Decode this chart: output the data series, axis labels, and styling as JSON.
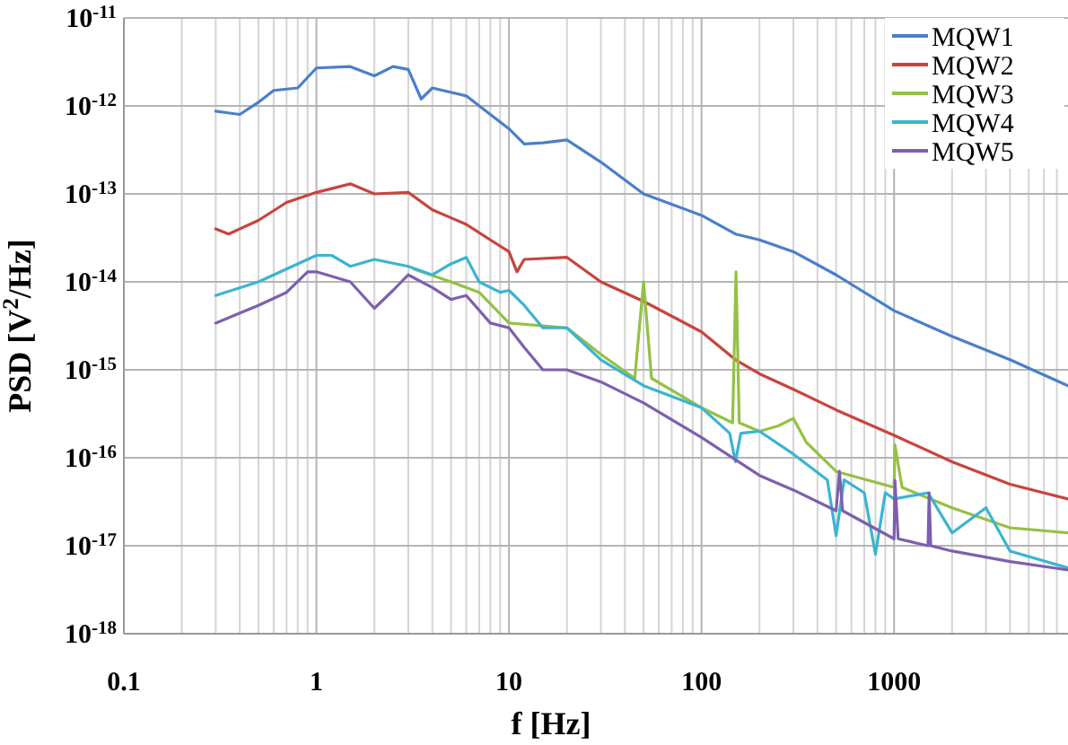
{
  "chart_data": {
    "type": "line",
    "xlabel": "f [Hz]",
    "ylabel": "PSD [V$^{2}$/Hz]",
    "log": "xy",
    "grid": true,
    "legend": "top right",
    "line_style": "solid",
    "marker": "none",
    "xlim": [
      0.1,
      8000
    ],
    "ylim": [
      1e-18,
      1e-11
    ],
    "xticks": [
      0.1,
      {
        "value": 0.2,
        "label": null
      },
      {
        "value": 0.3,
        "label": null
      },
      {
        "value": 0.4,
        "label": null
      },
      {
        "value": 0.5,
        "label": null
      },
      {
        "value": 0.6,
        "label": null
      },
      {
        "value": 0.7,
        "label": null
      },
      {
        "value": 0.8,
        "label": null
      },
      {
        "value": 0.9,
        "label": null
      },
      1,
      {
        "value": 2,
        "label": null
      },
      {
        "value": 3,
        "label": null
      },
      {
        "value": 4,
        "label": null
      },
      {
        "value": 5,
        "label": null
      },
      {
        "value": 6,
        "label": null
      },
      {
        "value": 7,
        "label": null
      },
      {
        "value": 8,
        "label": null
      },
      {
        "value": 9,
        "label": null
      },
      10,
      {
        "value": 20,
        "label": null
      },
      {
        "value": 30,
        "label": null
      },
      {
        "value": 40,
        "label": null
      },
      {
        "value": 50,
        "label": null
      },
      {
        "value": 60,
        "label": null
      },
      {
        "value": 70,
        "label": null
      },
      {
        "value": 80,
        "label": null
      },
      {
        "value": 90,
        "label": null
      },
      100,
      {
        "value": 200,
        "label": null
      },
      {
        "value": 300,
        "label": null
      },
      {
        "value": 400,
        "label": null
      },
      {
        "value": 500,
        "label": null
      },
      {
        "value": 600,
        "label": null
      },
      {
        "value": 700,
        "label": null
      },
      {
        "value": 800,
        "label": null
      },
      {
        "value": 900,
        "label": null
      },
      1000,
      {
        "value": 2000,
        "label": null
      },
      {
        "value": 3000,
        "label": null
      },
      {
        "value": 4000,
        "label": null
      },
      {
        "value": 5000,
        "label": null
      },
      {
        "value": 6000,
        "label": null
      },
      {
        "value": 7000,
        "label": null
      }
    ],
    "yticks": [
      {
        "value": 1e-18,
        "label": "10$^{-18}$"
      },
      {
        "value": 1e-17,
        "label": "10$^{-17}$"
      },
      {
        "value": 1e-16,
        "label": "10$^{-16}$"
      },
      {
        "value": 1e-15,
        "label": "10$^{-15}$"
      },
      {
        "value": 1e-14,
        "label": "10$^{-14}$"
      },
      {
        "value": 1e-13,
        "label": "10$^{-13}$"
      },
      {
        "value": 1e-12,
        "label": "10$^{-12}$"
      },
      {
        "value": 1e-11,
        "label": "10$^{-11}$"
      }
    ],
    "series": [
      {
        "name": "MQW1",
        "color": "#4a7fc9",
        "x": [
          0.3,
          0.4,
          0.5,
          0.6,
          0.8,
          1,
          1.5,
          2,
          2.5,
          3,
          3.5,
          4,
          6,
          8,
          10,
          12,
          15,
          20,
          30,
          50,
          100,
          150,
          200,
          300,
          500,
          1000,
          2000,
          4000,
          8000
        ],
        "values": [
          8.7e-13,
          8e-13,
          1.1e-12,
          1.5e-12,
          1.6e-12,
          2.7e-12,
          2.8e-12,
          2.2e-12,
          2.8e-12,
          2.6e-12,
          1.2e-12,
          1.6e-12,
          1.3e-12,
          8e-13,
          5.5e-13,
          3.7e-13,
          3.8e-13,
          4.1e-13,
          2.3e-13,
          1e-13,
          5.7e-14,
          3.5e-14,
          3e-14,
          2.2e-14,
          1.2e-14,
          4.7e-15,
          2.4e-15,
          1.3e-15,
          6.6e-16
        ]
      },
      {
        "name": "MQW2",
        "color": "#c8443e",
        "x": [
          0.3,
          0.35,
          0.5,
          0.7,
          1,
          1.5,
          2,
          3,
          4,
          6,
          8,
          10,
          11,
          12,
          20,
          30,
          50,
          100,
          150,
          200,
          300,
          500,
          1000,
          2000,
          4000,
          8000
        ],
        "values": [
          4e-14,
          3.5e-14,
          5e-14,
          8e-14,
          1.04e-13,
          1.3e-13,
          1e-13,
          1.04e-13,
          6.6e-14,
          4.5e-14,
          3e-14,
          2.2e-14,
          1.3e-14,
          1.8e-14,
          1.9e-14,
          1e-14,
          6e-15,
          2.7e-15,
          1.3e-15,
          9e-16,
          6e-16,
          3.5e-16,
          1.8e-16,
          9e-17,
          5e-17,
          3.4e-17
        ]
      },
      {
        "name": "MQW3",
        "color": "#94c143",
        "x": [
          3.2,
          5,
          7,
          10,
          20,
          30,
          45,
          50,
          55,
          100,
          145,
          151,
          157,
          200,
          250,
          300,
          350,
          500,
          1000,
          1010,
          1100,
          2000,
          4000,
          8000
        ],
        "values": [
          1.4e-14,
          1e-14,
          7.6e-15,
          3.4e-15,
          3e-15,
          1.5e-15,
          8e-16,
          1e-14,
          8e-16,
          3.7e-16,
          2.5e-16,
          1.3e-14,
          2.5e-16,
          2e-16,
          2.3e-16,
          2.8e-16,
          1.5e-16,
          7e-17,
          4.6e-17,
          1.4e-16,
          4.6e-17,
          2.7e-17,
          1.6e-17,
          1.4e-17
        ]
      },
      {
        "name": "MQW4",
        "color": "#3bb4d0",
        "x": [
          0.3,
          0.5,
          0.8,
          1,
          1.2,
          1.5,
          2,
          3,
          4,
          5,
          6,
          7,
          9,
          10,
          12,
          15,
          20,
          30,
          50,
          100,
          140,
          150,
          160,
          200,
          300,
          450,
          500,
          550,
          700,
          800,
          900,
          1000,
          1500,
          2000,
          3000,
          4000,
          8000
        ],
        "values": [
          7e-15,
          1e-14,
          1.6e-14,
          2e-14,
          2e-14,
          1.5e-14,
          1.8e-14,
          1.5e-14,
          1.2e-14,
          1.6e-14,
          1.9e-14,
          1e-14,
          7.6e-15,
          8e-15,
          5.4e-15,
          3e-15,
          3e-15,
          1.3e-15,
          6.6e-16,
          3.7e-16,
          1.9e-16,
          9e-17,
          1.9e-16,
          2e-16,
          1.1e-16,
          5.6e-17,
          1.3e-17,
          5.6e-17,
          4e-17,
          8e-18,
          4e-17,
          3.4e-17,
          4e-17,
          1.4e-17,
          2.7e-17,
          8.7e-18,
          5.6e-18
        ]
      },
      {
        "name": "MQW5",
        "color": "#7d5fae",
        "x": [
          0.3,
          0.5,
          0.7,
          0.9,
          1,
          1.5,
          2,
          2.5,
          3,
          4,
          5,
          6,
          8,
          10,
          12,
          15,
          20,
          30,
          50,
          100,
          200,
          300,
          500,
          520,
          540,
          1000,
          1010,
          1050,
          1500,
          1520,
          1550,
          2000,
          4000,
          8000
        ],
        "values": [
          3.4e-15,
          5.4e-15,
          7.6e-15,
          1.3e-14,
          1.3e-14,
          1e-14,
          5e-15,
          8e-15,
          1.2e-14,
          8.6e-15,
          6.3e-15,
          7e-15,
          3.4e-15,
          3e-15,
          1.8e-15,
          1e-15,
          1e-15,
          7.3e-16,
          4.2e-16,
          1.7e-16,
          6.3e-17,
          4.3e-17,
          2.5e-17,
          7e-17,
          2.5e-17,
          1.2e-17,
          5.5e-17,
          1.2e-17,
          1e-17,
          4e-17,
          1e-17,
          8.7e-18,
          6.6e-18,
          5.3e-18
        ]
      }
    ]
  }
}
